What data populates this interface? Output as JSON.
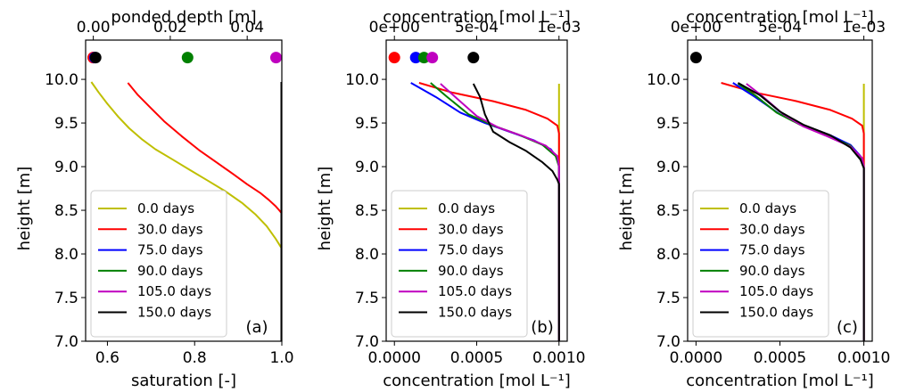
{
  "chart_data": [
    {
      "type": "line",
      "panel_label": "(a)",
      "xlabel": "saturation [-]",
      "ylabel": "height [m]",
      "xlim": [
        0.55,
        1.0
      ],
      "ylim": [
        7.0,
        10.45
      ],
      "xticks": [
        0.6,
        0.8,
        1.0
      ],
      "xtick_labels": [
        "0.6",
        "0.8",
        "1.0"
      ],
      "yticks": [
        7.0,
        7.5,
        8.0,
        8.5,
        9.0,
        9.5,
        10.0
      ],
      "ytick_labels": [
        "7.0",
        "7.5",
        "8.0",
        "8.5",
        "9.0",
        "9.5",
        "10.0"
      ],
      "top_axis": {
        "label": "ponded depth [m]",
        "lim": [
          -0.002,
          0.049
        ],
        "ticks": [
          0.0,
          0.02,
          0.04
        ],
        "tick_labels": [
          "0.00",
          "0.02",
          "0.04"
        ]
      },
      "legend_position": "lower-left",
      "series": [
        {
          "name": "0.0 days",
          "color": "#bfbf00",
          "x": [
            0.563,
            0.58,
            0.6,
            0.625,
            0.65,
            0.68,
            0.71,
            0.75,
            0.79,
            0.83,
            0.87,
            0.91,
            0.94,
            0.965,
            0.985,
            0.995,
            0.999,
            0.999
          ],
          "y": [
            9.97,
            9.85,
            9.72,
            9.57,
            9.44,
            9.31,
            9.2,
            9.08,
            8.96,
            8.84,
            8.72,
            8.58,
            8.45,
            8.32,
            8.18,
            8.1,
            8.07,
            7.0
          ]
        },
        {
          "name": "30.0 days",
          "color": "#ff0000",
          "x": [
            0.647,
            0.67,
            0.7,
            0.73,
            0.77,
            0.81,
            0.85,
            0.89,
            0.92,
            0.95,
            0.97,
            0.985,
            0.994,
            0.999,
            0.999
          ],
          "y": [
            9.96,
            9.82,
            9.67,
            9.52,
            9.35,
            9.19,
            9.05,
            8.91,
            8.8,
            8.7,
            8.62,
            8.55,
            8.5,
            8.47,
            7.0
          ]
        },
        {
          "name": "75.0 days",
          "color": "#0000ff",
          "x": [
            0.999,
            0.999
          ],
          "y": [
            7.0,
            9.97
          ]
        },
        {
          "name": "90.0 days",
          "color": "#008000",
          "x": [
            0.999,
            0.999
          ],
          "y": [
            7.0,
            9.97
          ]
        },
        {
          "name": "105.0 days",
          "color": "#bf00bf",
          "x": [
            0.999,
            0.999
          ],
          "y": [
            7.0,
            9.97
          ]
        },
        {
          "name": "150.0 days",
          "color": "#000000",
          "x": [
            0.999,
            0.999
          ],
          "y": [
            7.0,
            9.97
          ]
        }
      ],
      "markers": {
        "axis": "top",
        "y": 10.25,
        "points": [
          {
            "series": "0.0 days",
            "x": 0.0,
            "color": "#ff0000"
          },
          {
            "series": "30.0 days",
            "x": 0.0,
            "color": "#ff0000"
          },
          {
            "series": "75.0 days",
            "x": 0.0004,
            "color": "#0000ff"
          },
          {
            "series": "150.0 days",
            "x": 0.0006,
            "color": "#000000"
          },
          {
            "series": "90.0 days",
            "x": 0.0245,
            "color": "#008000"
          },
          {
            "series": "105.0 days",
            "x": 0.0475,
            "color": "#bf00bf"
          }
        ]
      }
    },
    {
      "type": "line",
      "panel_label": "(b)",
      "xlabel": "concentration [mol L⁻¹]",
      "ylabel": "height [m]",
      "xlim": [
        -5e-05,
        0.00105
      ],
      "ylim": [
        7.0,
        10.45
      ],
      "xticks": [
        0.0,
        0.0005,
        0.001
      ],
      "xtick_labels": [
        "0.0000",
        "0.0005",
        "0.0010"
      ],
      "yticks": [
        7.0,
        7.5,
        8.0,
        8.5,
        9.0,
        9.5,
        10.0
      ],
      "ytick_labels": [
        "7.0",
        "7.5",
        "8.0",
        "8.5",
        "9.0",
        "9.5",
        "10.0"
      ],
      "top_axis": {
        "label": "concentration [mol L⁻¹]",
        "lim": [
          -5e-05,
          0.00105
        ],
        "ticks": [
          0.0,
          0.0005,
          0.001
        ],
        "tick_labels": [
          "0e+00",
          "5e-04",
          "1e-03"
        ]
      },
      "legend_position": "lower-left",
      "series": [
        {
          "name": "0.0 days",
          "color": "#bfbf00",
          "x": [
            0.001,
            0.001
          ],
          "y": [
            7.0,
            9.95
          ]
        },
        {
          "name": "30.0 days",
          "color": "#ff0000",
          "x": [
            0.00015,
            0.00035,
            0.0006,
            0.0008,
            0.00093,
            0.00099,
            0.001,
            0.001
          ],
          "y": [
            9.96,
            9.85,
            9.75,
            9.65,
            9.55,
            9.47,
            9.38,
            7.0
          ]
        },
        {
          "name": "75.0 days",
          "color": "#0000ff",
          "x": [
            0.0001,
            0.00025,
            0.0004,
            0.00055,
            0.0007,
            0.00085,
            0.00095,
            0.00099,
            0.001,
            0.001
          ],
          "y": [
            9.96,
            9.8,
            9.62,
            9.5,
            9.4,
            9.3,
            9.2,
            9.1,
            9.0,
            7.0
          ]
        },
        {
          "name": "90.0 days",
          "color": "#008000",
          "x": [
            0.00022,
            0.00032,
            0.00045,
            0.0006,
            0.00075,
            0.0009,
            0.00098,
            0.001,
            0.001
          ],
          "y": [
            9.96,
            9.8,
            9.6,
            9.47,
            9.37,
            9.25,
            9.12,
            9.0,
            7.0
          ]
        },
        {
          "name": "105.0 days",
          "color": "#bf00bf",
          "x": [
            0.00028,
            0.00038,
            0.0005,
            0.00063,
            0.00078,
            0.00092,
            0.00099,
            0.001,
            0.001
          ],
          "y": [
            9.95,
            9.78,
            9.58,
            9.45,
            9.35,
            9.24,
            9.12,
            9.0,
            7.0
          ]
        },
        {
          "name": "150.0 days",
          "color": "#000000",
          "x": [
            0.00048,
            0.00052,
            0.00055,
            0.0006,
            0.0007,
            0.0008,
            0.0009,
            0.00096,
            0.00099,
            0.001,
            0.001
          ],
          "y": [
            9.95,
            9.8,
            9.6,
            9.4,
            9.28,
            9.18,
            9.05,
            8.95,
            8.85,
            8.8,
            7.0
          ]
        }
      ],
      "markers": {
        "axis": "top",
        "y": 10.25,
        "points": [
          {
            "series": "30.0 days",
            "x": 0.0,
            "color": "#ff0000"
          },
          {
            "series": "75.0 days",
            "x": 0.00013,
            "color": "#0000ff"
          },
          {
            "series": "90.0 days",
            "x": 0.00018,
            "color": "#008000"
          },
          {
            "series": "105.0 days",
            "x": 0.00023,
            "color": "#bf00bf"
          },
          {
            "series": "150.0 days",
            "x": 0.00048,
            "color": "#000000"
          }
        ]
      }
    },
    {
      "type": "line",
      "panel_label": "(c)",
      "xlabel": "concentration [mol L⁻¹]",
      "ylabel": "height [m]",
      "xlim": [
        -5e-05,
        0.00105
      ],
      "ylim": [
        7.0,
        10.45
      ],
      "xticks": [
        0.0,
        0.0005,
        0.001
      ],
      "xtick_labels": [
        "0.0000",
        "0.0005",
        "0.0010"
      ],
      "yticks": [
        7.0,
        7.5,
        8.0,
        8.5,
        9.0,
        9.5,
        10.0
      ],
      "ytick_labels": [
        "7.0",
        "7.5",
        "8.0",
        "8.5",
        "9.0",
        "9.5",
        "10.0"
      ],
      "top_axis": {
        "label": "concentration [mol L⁻¹]",
        "lim": [
          -5e-05,
          0.00105
        ],
        "ticks": [
          0.0,
          0.0005,
          0.001
        ],
        "tick_labels": [
          "0e+00",
          "5e-04",
          "1e-03"
        ]
      },
      "legend_position": "lower-left",
      "series": [
        {
          "name": "0.0 days",
          "color": "#bfbf00",
          "x": [
            0.001,
            0.001
          ],
          "y": [
            7.0,
            9.95
          ]
        },
        {
          "name": "30.0 days",
          "color": "#ff0000",
          "x": [
            0.00015,
            0.00035,
            0.0006,
            0.0008,
            0.00093,
            0.00099,
            0.001,
            0.001
          ],
          "y": [
            9.96,
            9.85,
            9.75,
            9.65,
            9.55,
            9.47,
            9.38,
            7.0
          ]
        },
        {
          "name": "75.0 days",
          "color": "#0000ff",
          "x": [
            0.00022,
            0.00035,
            0.0005,
            0.00065,
            0.0008,
            0.00092,
            0.00098,
            0.001,
            0.001
          ],
          "y": [
            9.96,
            9.8,
            9.6,
            9.47,
            9.36,
            9.25,
            9.12,
            9.0,
            7.0
          ]
        },
        {
          "name": "90.0 days",
          "color": "#008000",
          "x": [
            0.00025,
            0.00035,
            0.00048,
            0.00062,
            0.00078,
            0.00092,
            0.00098,
            0.001,
            0.001
          ],
          "y": [
            9.95,
            9.82,
            9.62,
            9.48,
            9.36,
            9.24,
            9.1,
            9.0,
            7.0
          ]
        },
        {
          "name": "105.0 days",
          "color": "#bf00bf",
          "x": [
            0.0003,
            0.0004,
            0.00052,
            0.00064,
            0.00078,
            0.00092,
            0.00099,
            0.001,
            0.001
          ],
          "y": [
            9.95,
            9.8,
            9.6,
            9.46,
            9.35,
            9.23,
            9.1,
            9.0,
            7.0
          ]
        },
        {
          "name": "150.0 days",
          "color": "#000000",
          "x": [
            0.00025,
            0.00038,
            0.0005,
            0.00064,
            0.0008,
            0.00092,
            0.00098,
            0.001,
            0.001
          ],
          "y": [
            9.96,
            9.82,
            9.63,
            9.48,
            9.36,
            9.22,
            9.08,
            8.98,
            7.0
          ]
        }
      ],
      "markers": {
        "axis": "top",
        "y": 10.25,
        "points": [
          {
            "series": "150.0 days",
            "x": 0.0,
            "color": "#000000"
          }
        ]
      }
    }
  ]
}
